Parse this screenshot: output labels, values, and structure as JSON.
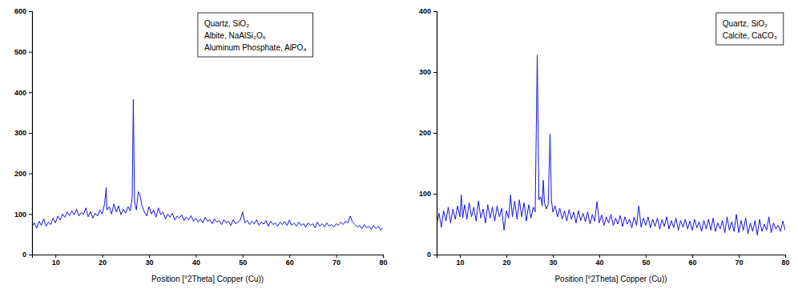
{
  "chart_data": [
    {
      "type": "line",
      "xlabel": "Position [°2Theta] Copper (Cu))",
      "annotations": [
        "Quartz, SiO₂",
        "Albite, NaAlSi₂O₆",
        "Aluminum Phosphate,  AlPO₄"
      ],
      "color": "#1414e6",
      "grid": false,
      "xlim": [
        5,
        80
      ],
      "xticks": [
        10,
        20,
        30,
        40,
        50,
        60,
        70,
        80
      ],
      "ylim": [
        0,
        600
      ],
      "yticks": [
        0,
        100,
        200,
        300,
        400,
        500,
        600
      ],
      "x": [
        5,
        5.5,
        6,
        6.5,
        7,
        7.5,
        8,
        8.5,
        9,
        9.5,
        10,
        10.5,
        11,
        11.5,
        12,
        12.5,
        13,
        13.5,
        14,
        14.5,
        15,
        15.5,
        16,
        16.5,
        17,
        17.5,
        18,
        18.5,
        19,
        19.5,
        20,
        20.5,
        20.85,
        21,
        21.5,
        22,
        22.5,
        23,
        23.5,
        24,
        24.5,
        25,
        25.5,
        26,
        26.4,
        26.65,
        26.9,
        27.3,
        27.7,
        28,
        28.5,
        29,
        29.5,
        30,
        30.5,
        31,
        31.5,
        32,
        32.5,
        33,
        33.5,
        34,
        34.5,
        35,
        35.5,
        36,
        36.5,
        37,
        37.5,
        38,
        38.5,
        39,
        39.5,
        40,
        40.5,
        41,
        41.5,
        42,
        42.5,
        43,
        43.5,
        44,
        44.5,
        45,
        45.5,
        46,
        46.5,
        47,
        47.5,
        48,
        48.5,
        49,
        49.5,
        50,
        50.5,
        51,
        51.5,
        52,
        52.5,
        53,
        53.5,
        54,
        54.5,
        55,
        55.5,
        56,
        56.5,
        57,
        57.5,
        58,
        58.5,
        59,
        59.5,
        60,
        60.5,
        61,
        61.5,
        62,
        62.5,
        63,
        63.5,
        64,
        64.5,
        65,
        65.5,
        66,
        66.5,
        67,
        67.5,
        68,
        68.5,
        69,
        69.5,
        70,
        70.5,
        71,
        71.5,
        72,
        72.5,
        73,
        73.5,
        74,
        74.5,
        75,
        75.5,
        76,
        76.5,
        77,
        77.5,
        78,
        78.5,
        79,
        79.5,
        80
      ],
      "values": [
        70,
        78,
        65,
        82,
        72,
        88,
        70,
        80,
        74,
        90,
        78,
        95,
        85,
        100,
        92,
        105,
        96,
        108,
        98,
        112,
        95,
        104,
        99,
        115,
        93,
        106,
        90,
        102,
        95,
        110,
        100,
        125,
        165,
        110,
        118,
        100,
        125,
        105,
        120,
        98,
        112,
        102,
        118,
        108,
        140,
        383,
        130,
        110,
        155,
        150,
        120,
        105,
        95,
        118,
        100,
        110,
        92,
        115,
        98,
        105,
        88,
        100,
        92,
        102,
        85,
        95,
        90,
        98,
        84,
        92,
        86,
        96,
        82,
        90,
        80,
        88,
        78,
        92,
        82,
        86,
        76,
        88,
        80,
        84,
        74,
        86,
        78,
        82,
        72,
        86,
        76,
        80,
        85,
        105,
        78,
        84,
        74,
        82,
        76,
        86,
        72,
        80,
        75,
        84,
        70,
        82,
        74,
        78,
        70,
        80,
        74,
        82,
        72,
        85,
        72,
        78,
        70,
        80,
        72,
        76,
        68,
        78,
        72,
        76,
        66,
        80,
        70,
        76,
        68,
        78,
        70,
        74,
        68,
        76,
        72,
        80,
        74,
        82,
        78,
        95,
        80,
        74,
        68,
        72,
        64,
        74,
        66,
        70,
        62,
        72,
        64,
        70,
        60,
        66
      ]
    },
    {
      "type": "line",
      "xlabel": "Position [°2Theta] Copper (Cu))",
      "annotations": [
        "Quartz, SiO₂",
        "Calcite, CaCO₃"
      ],
      "color": "#1414e6",
      "grid": false,
      "xlim": [
        5,
        80
      ],
      "xticks": [
        10,
        20,
        30,
        40,
        50,
        60,
        70,
        80
      ],
      "ylim": [
        0,
        400
      ],
      "yticks": [
        0,
        100,
        200,
        300,
        400
      ],
      "x": [
        5,
        5.5,
        6,
        6.5,
        7,
        7.5,
        8,
        8.5,
        9,
        9.5,
        10,
        10.3,
        10.6,
        11,
        11.5,
        12,
        12.5,
        13,
        13.5,
        14,
        14.5,
        15,
        15.5,
        16,
        16.5,
        17,
        17.5,
        18,
        18.5,
        19,
        19.5,
        20,
        20.5,
        20.9,
        21.3,
        21.8,
        22.3,
        22.8,
        23.3,
        23.8,
        24.3,
        24.8,
        25.3,
        25.8,
        26.2,
        26.65,
        27,
        27.4,
        27.7,
        27.95,
        28.2,
        28.6,
        29,
        29.4,
        29.7,
        30,
        30.5,
        31,
        31.5,
        32,
        32.5,
        33,
        33.5,
        34,
        34.5,
        35,
        35.5,
        36,
        36.5,
        37,
        37.5,
        38,
        38.5,
        39,
        39.5,
        40,
        40.5,
        41,
        41.5,
        42,
        42.5,
        43,
        43.5,
        44,
        44.5,
        45,
        45.5,
        46,
        46.5,
        47,
        47.5,
        48,
        48.5,
        49,
        49.5,
        50,
        50.5,
        51,
        51.5,
        52,
        52.5,
        53,
        53.5,
        54,
        54.5,
        55,
        55.5,
        56,
        56.5,
        57,
        57.5,
        58,
        58.5,
        59,
        59.5,
        60,
        60.5,
        61,
        61.5,
        62,
        62.5,
        63,
        63.5,
        64,
        64.5,
        65,
        65.5,
        66,
        66.5,
        67,
        67.5,
        68,
        68.5,
        69,
        69.5,
        70,
        70.5,
        71,
        71.5,
        72,
        72.5,
        73,
        73.5,
        74,
        74.5,
        75,
        75.5,
        76,
        76.5,
        77,
        77.5,
        78,
        78.5,
        79,
        79.5,
        80
      ],
      "values": [
        50,
        68,
        45,
        72,
        55,
        78,
        52,
        75,
        58,
        80,
        62,
        98,
        60,
        82,
        58,
        85,
        62,
        78,
        55,
        88,
        60,
        75,
        52,
        82,
        60,
        78,
        55,
        80,
        62,
        76,
        40,
        72,
        60,
        98,
        62,
        88,
        58,
        90,
        62,
        85,
        55,
        82,
        60,
        78,
        70,
        328,
        90,
        95,
        80,
        122,
        85,
        75,
        82,
        198,
        90,
        70,
        80,
        62,
        76,
        58,
        72,
        55,
        74,
        58,
        70,
        52,
        72,
        56,
        68,
        54,
        70,
        50,
        66,
        55,
        87,
        52,
        65,
        48,
        62,
        52,
        66,
        48,
        60,
        50,
        64,
        46,
        62,
        50,
        58,
        44,
        62,
        48,
        80,
        45,
        60,
        48,
        62,
        44,
        58,
        46,
        60,
        42,
        58,
        46,
        62,
        42,
        56,
        44,
        60,
        40,
        56,
        45,
        58,
        42,
        55,
        40,
        58,
        44,
        54,
        38,
        56,
        42,
        58,
        40,
        60,
        38,
        52,
        42,
        56,
        36,
        62,
        40,
        54,
        38,
        66,
        36,
        56,
        40,
        60,
        34,
        52,
        38,
        56,
        32,
        58,
        38,
        50,
        40,
        62,
        36,
        52,
        42,
        48,
        38,
        55,
        40
      ]
    }
  ]
}
